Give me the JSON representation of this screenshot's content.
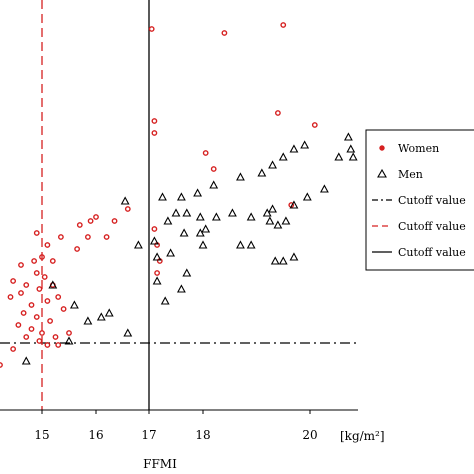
{
  "chart_data": {
    "type": "scatter",
    "xlabel": "FFMI",
    "x_unit": "[kg/m²]",
    "xlim": [
      14.2,
      21.0
    ],
    "ylim": [
      0,
      100
    ],
    "x_ticks": [
      15,
      16,
      17,
      18,
      20
    ],
    "x_tick_labels": [
      "15",
      "16",
      "17",
      "18",
      "20"
    ],
    "legend_position": "right",
    "colors": {
      "women": "#d62020",
      "men": "#000000",
      "cutoff_dashdot": "#000000",
      "cutoff_dashed": "#d62020",
      "cutoff_solid": "#000000"
    },
    "series": [
      {
        "name": "Women",
        "marker": "circle",
        "points": [
          [
            17.05,
            94
          ],
          [
            17.1,
            71
          ],
          [
            17.1,
            68
          ],
          [
            18.4,
            93
          ],
          [
            19.5,
            95
          ],
          [
            19.4,
            73
          ],
          [
            20.1,
            70
          ],
          [
            18.05,
            63
          ],
          [
            18.2,
            59
          ],
          [
            16.6,
            49
          ],
          [
            16.35,
            46
          ],
          [
            16.0,
            47
          ],
          [
            15.9,
            46
          ],
          [
            15.7,
            45
          ],
          [
            16.2,
            42
          ],
          [
            15.85,
            42
          ],
          [
            15.65,
            39
          ],
          [
            15.35,
            42
          ],
          [
            15.1,
            40
          ],
          [
            14.9,
            43
          ],
          [
            15.0,
            37
          ],
          [
            14.85,
            36
          ],
          [
            15.2,
            36
          ],
          [
            14.6,
            35
          ],
          [
            14.9,
            33
          ],
          [
            15.05,
            32
          ],
          [
            14.45,
            31
          ],
          [
            14.7,
            30
          ],
          [
            14.95,
            29
          ],
          [
            15.2,
            30
          ],
          [
            14.6,
            28
          ],
          [
            14.8,
            25
          ],
          [
            15.1,
            26
          ],
          [
            15.3,
            27
          ],
          [
            14.4,
            27
          ],
          [
            14.65,
            23
          ],
          [
            14.9,
            22
          ],
          [
            15.15,
            21
          ],
          [
            15.4,
            24
          ],
          [
            14.55,
            20
          ],
          [
            14.8,
            19
          ],
          [
            15.0,
            18
          ],
          [
            15.25,
            17
          ],
          [
            15.5,
            18
          ],
          [
            14.7,
            17
          ],
          [
            14.95,
            16
          ],
          [
            15.1,
            15
          ],
          [
            15.3,
            15
          ],
          [
            14.45,
            14
          ],
          [
            14.2,
            10
          ],
          [
            17.1,
            44
          ],
          [
            17.15,
            40
          ],
          [
            17.2,
            36
          ],
          [
            17.15,
            33
          ],
          [
            19.65,
            50
          ]
        ]
      },
      {
        "name": "Men",
        "marker": "triangle",
        "points": [
          [
            20.8,
            67
          ],
          [
            20.85,
            64
          ],
          [
            20.6,
            62
          ],
          [
            20.9,
            62
          ],
          [
            19.9,
            65
          ],
          [
            19.7,
            64
          ],
          [
            19.5,
            62
          ],
          [
            19.3,
            60
          ],
          [
            19.1,
            58
          ],
          [
            18.7,
            57
          ],
          [
            18.2,
            55
          ],
          [
            17.9,
            53
          ],
          [
            17.6,
            52
          ],
          [
            17.25,
            52
          ],
          [
            20.3,
            54
          ],
          [
            19.95,
            52
          ],
          [
            19.7,
            50
          ],
          [
            19.3,
            49
          ],
          [
            19.2,
            48
          ],
          [
            18.9,
            47
          ],
          [
            18.55,
            48
          ],
          [
            18.25,
            47
          ],
          [
            17.95,
            47
          ],
          [
            17.7,
            48
          ],
          [
            17.5,
            48
          ],
          [
            17.35,
            46
          ],
          [
            17.95,
            43
          ],
          [
            17.65,
            43
          ],
          [
            17.1,
            41
          ],
          [
            18.0,
            40
          ],
          [
            17.4,
            38
          ],
          [
            17.15,
            37
          ],
          [
            16.8,
            40
          ],
          [
            19.25,
            46
          ],
          [
            19.55,
            46
          ],
          [
            19.4,
            45
          ],
          [
            16.55,
            51
          ],
          [
            18.05,
            44
          ],
          [
            18.7,
            40
          ],
          [
            18.9,
            40
          ],
          [
            19.5,
            36
          ],
          [
            17.6,
            29
          ],
          [
            16.1,
            22
          ],
          [
            16.6,
            18
          ],
          [
            15.2,
            30
          ],
          [
            15.6,
            25
          ],
          [
            15.85,
            21
          ],
          [
            15.5,
            16
          ],
          [
            14.7,
            11
          ],
          [
            19.7,
            37
          ],
          [
            17.15,
            31
          ],
          [
            17.3,
            26
          ],
          [
            19.35,
            36
          ],
          [
            17.7,
            33
          ],
          [
            16.25,
            23
          ]
        ]
      }
    ],
    "reference_lines": [
      {
        "name": "Cutoff value",
        "orientation": "horizontal",
        "value": 15.5,
        "style": "dash-dot",
        "color": "#000000"
      },
      {
        "name": "Cutoff value",
        "orientation": "vertical",
        "value": 15.0,
        "style": "dashed",
        "color": "#d62020"
      },
      {
        "name": "Cutoff value",
        "orientation": "vertical",
        "value": 17.0,
        "style": "solid",
        "color": "#000000"
      }
    ],
    "legend": [
      {
        "label": "Women",
        "symbol": "circle"
      },
      {
        "label": "Men",
        "symbol": "triangle"
      },
      {
        "label": "Cutoff value",
        "symbol": "dash-dot-line"
      },
      {
        "label": "Cutoff value",
        "symbol": "dashed-line"
      },
      {
        "label": "Cutoff value",
        "symbol": "solid-line"
      }
    ]
  }
}
